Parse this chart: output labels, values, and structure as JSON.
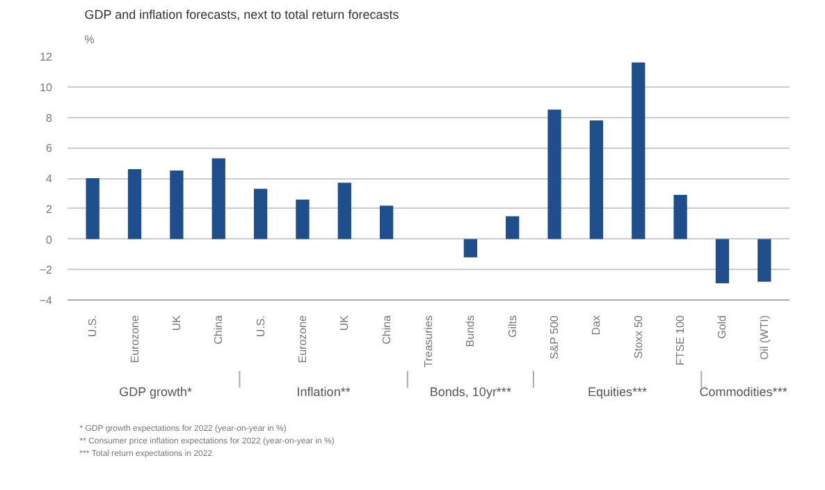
{
  "chart_data": {
    "type": "bar",
    "title": "GDP and inflation forecasts, next to total return forecasts",
    "ylabel": "%",
    "categories": [
      "U.S.",
      "Eurozone",
      "UK",
      "China",
      "U.S.",
      "Eurozone",
      "UK",
      "China",
      "Treasuries",
      "Bunds",
      "Gilts",
      "S&P 500",
      "Dax",
      "Stoxx 50",
      "FTSE 100",
      "Gold",
      "Oil (WTI)"
    ],
    "values": [
      4.0,
      4.6,
      4.5,
      5.3,
      3.3,
      2.6,
      3.7,
      2.2,
      null,
      -1.2,
      1.5,
      8.5,
      7.8,
      11.6,
      2.9,
      -2.9,
      -2.8
    ],
    "color": "#1f4e8c",
    "ylim": [
      -4,
      12
    ],
    "yticks": [
      -4,
      -2,
      0,
      2,
      4,
      6,
      8,
      10,
      12
    ],
    "grid": "y",
    "annotations": [
      "GDP growth*",
      "Inflation**",
      "Bonds, 10yr***",
      "Equities***",
      "Commodities***",
      "* GDP growth expectations for 2022 (year-on-year in %)",
      "** Consumer price inflation expectations for 2022 (year-on-year in %)",
      "*** Total return expectations in 2022"
    ]
  }
}
